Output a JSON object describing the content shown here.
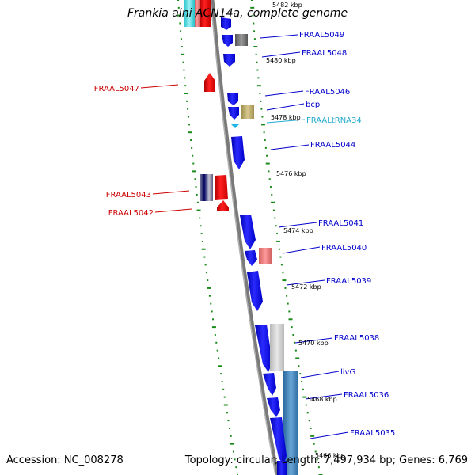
{
  "title": "Frankia alni ACN14a, complete genome",
  "accession": "Accession: NC_008278",
  "topology": "Topology: circular; Length: 7,497,934 bp; Genes: 6,769",
  "ticks": [
    "5482 kbp",
    "5480 kbp",
    "5478 kbp",
    "5476 kbp",
    "5474 kbp",
    "5472 kbp",
    "5470 kbp",
    "5468 kbp",
    "5466 kbp"
  ],
  "labels": {
    "right": [
      "FRAAL5049",
      "FRAAL5048",
      "FRAAL5046",
      "bcp",
      "FRAALtRNA34",
      "FRAAL5044",
      "FRAAL5041",
      "FRAAL5040",
      "FRAAL5039",
      "FRAAL5038",
      "livG",
      "FRAAL5036",
      "FRAAL5035"
    ],
    "left": [
      "FRAAL5047",
      "FRAAL5043",
      "FRAAL5042"
    ]
  },
  "colors": {
    "forward_cds": "#0a0adc",
    "reverse_cds": "#e00000",
    "trna": "#1fb6e6",
    "right_label": "#0000cc",
    "left_label": "#cc0000",
    "trna_label": "#22aacc",
    "backbone": "#808080",
    "gc_dots": "#1a8a1a"
  }
}
